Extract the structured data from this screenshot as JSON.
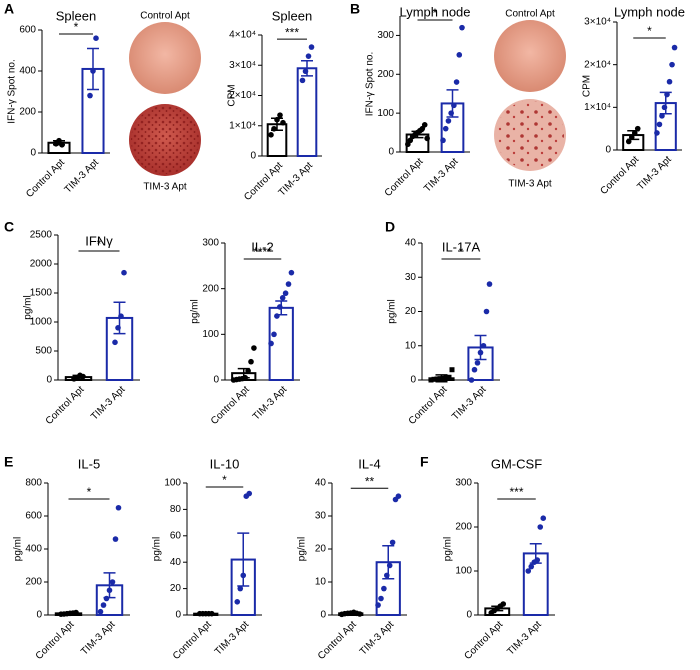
{
  "figure": {
    "panel_labels": [
      "A",
      "B",
      "C",
      "D",
      "E",
      "F"
    ],
    "image_labels": [
      "Control Apt",
      "TIM-3 Apt",
      "Control Apt",
      "TIM-3 Apt"
    ]
  },
  "chart_data": [
    {
      "type": "bar",
      "title": "Spleen",
      "ylabel": "IFN-γ Spot no.",
      "categories": [
        "Control Apt",
        "TIM-3 Apt"
      ],
      "values": [
        50,
        410
      ],
      "errors": [
        10,
        100
      ],
      "points": [
        [
          45,
          60,
          40
        ],
        [
          280,
          400,
          560
        ]
      ],
      "significance": "*",
      "colors": [
        "#000000",
        "#1a2aa8"
      ],
      "ylim": [
        0,
        600
      ],
      "yticks": [
        0,
        200,
        400,
        600
      ]
    },
    {
      "type": "bar",
      "title": "Spleen",
      "ylabel": "CPM",
      "categories": [
        "Control Apt",
        "TIM-3 Apt"
      ],
      "values": [
        10500,
        29000
      ],
      "errors": [
        2000,
        2500
      ],
      "points": [
        [
          7000,
          9000,
          12000,
          13500,
          11000
        ],
        [
          25000,
          28000,
          33000,
          36000
        ]
      ],
      "significance": "***",
      "colors": [
        "#000000",
        "#1a2aa8"
      ],
      "ylim": [
        0,
        40000
      ],
      "yticks": [
        0,
        {
          "value": 10000,
          "label": "1×10⁴"
        },
        {
          "value": 20000,
          "label": "2×10⁴"
        },
        {
          "value": 30000,
          "label": "3×10⁴"
        },
        {
          "value": 40000,
          "label": "4×10⁴"
        }
      ]
    },
    {
      "type": "bar",
      "title": "Lymph node",
      "ylabel": "IFN-γ Spot no.",
      "categories": [
        "Control Apt",
        "TIM-3 Apt"
      ],
      "values": [
        45,
        125
      ],
      "errors": [
        8,
        35
      ],
      "points": [
        [
          20,
          30,
          40,
          45,
          50,
          55,
          60,
          70,
          35
        ],
        [
          30,
          60,
          80,
          100,
          120,
          180,
          250,
          320
        ]
      ],
      "significance": "*",
      "colors": [
        "#000000",
        "#1a2aa8"
      ],
      "ylim": [
        0,
        350
      ],
      "yticks": [
        0,
        100,
        200,
        300
      ]
    },
    {
      "type": "bar",
      "title": "Lymph node",
      "ylabel": "CPM",
      "categories": [
        "Control Apt",
        "TIM-3 Apt"
      ],
      "values": [
        3500,
        11000
      ],
      "errors": [
        1000,
        2500
      ],
      "points": [
        [
          2000,
          3000,
          4000,
          5000
        ],
        [
          4000,
          6000,
          8000,
          10000,
          13000,
          16000,
          20000,
          24000
        ]
      ],
      "significance": "*",
      "colors": [
        "#000000",
        "#1a2aa8"
      ],
      "ylim": [
        0,
        30000
      ],
      "yticks": [
        0,
        {
          "value": 10000,
          "label": "1×10⁴"
        },
        {
          "value": 20000,
          "label": "2×10⁴"
        },
        {
          "value": 30000,
          "label": "3×10⁴"
        }
      ]
    },
    {
      "type": "bar",
      "title": "IFNγ",
      "ylabel": "pg/ml",
      "categories": [
        "Control Apt",
        "TIM-3 Apt"
      ],
      "values": [
        50,
        1070
      ],
      "errors": [
        30,
        270
      ],
      "points": [
        [
          20,
          40,
          80,
          60
        ],
        [
          650,
          900,
          1100,
          1850
        ]
      ],
      "significance": "*",
      "colors": [
        "#000000",
        "#1a2aa8"
      ],
      "ylim": [
        0,
        2500
      ],
      "yticks": [
        0,
        500,
        1000,
        1500,
        2000,
        2500
      ]
    },
    {
      "type": "bar",
      "title": "IL-2",
      "ylabel": "pg/ml",
      "categories": [
        "Control Apt",
        "TIM-3 Apt"
      ],
      "values": [
        15,
        158
      ],
      "errors": [
        10,
        15
      ],
      "points": [
        [
          0,
          1,
          2,
          3,
          5,
          20,
          40,
          70
        ],
        [
          80,
          100,
          140,
          160,
          180,
          190,
          210,
          235
        ]
      ],
      "significance": "****",
      "colors": [
        "#000000",
        "#1a2aa8"
      ],
      "ylim": [
        0,
        300
      ],
      "yticks": [
        0,
        100,
        200,
        300
      ]
    },
    {
      "type": "bar",
      "title": "IL-17A",
      "ylabel": "pg/ml",
      "categories": [
        "Control Apt",
        "TIM-3 Apt"
      ],
      "values": [
        0.5,
        9.5
      ],
      "errors": [
        1,
        3.5
      ],
      "points": [
        [
          0,
          0.2,
          0.3,
          0.4,
          0.5,
          0.6,
          0.8,
          3
        ],
        [
          0,
          3,
          5,
          8,
          10,
          20,
          28
        ]
      ],
      "markers": [
        "square",
        "circle"
      ],
      "significance": "*",
      "colors": [
        "#000000",
        "#1a2aa8"
      ],
      "ylim": [
        0,
        40
      ],
      "yticks": [
        0,
        10,
        20,
        30,
        40
      ]
    },
    {
      "type": "bar",
      "title": "IL-5",
      "ylabel": "pg/ml",
      "categories": [
        "Control Apt",
        "TIM-3 Apt"
      ],
      "values": [
        10,
        180
      ],
      "errors": [
        3,
        75
      ],
      "points": [
        [
          5,
          6,
          8,
          10,
          12,
          15
        ],
        [
          20,
          60,
          100,
          150,
          200,
          460,
          650
        ]
      ],
      "significance": "*",
      "colors": [
        "#000000",
        "#1a2aa8"
      ],
      "ylim": [
        0,
        800
      ],
      "yticks": [
        0,
        200,
        400,
        600,
        800
      ]
    },
    {
      "type": "bar",
      "title": "IL-10",
      "ylabel": "pg/ml",
      "categories": [
        "Control Apt",
        "TIM-3 Apt"
      ],
      "values": [
        1,
        42
      ],
      "errors": [
        0.3,
        20
      ],
      "points": [
        [
          1,
          1,
          1,
          1,
          1
        ],
        [
          10,
          20,
          30,
          90,
          92
        ]
      ],
      "significance": "*",
      "colors": [
        "#000000",
        "#1a2aa8"
      ],
      "ylim": [
        0,
        100
      ],
      "yticks": [
        0,
        20,
        40,
        60,
        80,
        100
      ]
    },
    {
      "type": "bar",
      "title": "IL-4",
      "ylabel": "pg/ml",
      "categories": [
        "Control Apt",
        "TIM-3 Apt"
      ],
      "values": [
        0.5,
        16
      ],
      "errors": [
        0.2,
        5
      ],
      "points": [
        [
          0.2,
          0.4,
          0.5,
          0.6,
          0.8,
          0.5,
          0.3
        ],
        [
          3,
          5,
          8,
          12,
          15,
          22,
          35,
          36
        ]
      ],
      "significance": "**",
      "colors": [
        "#000000",
        "#1a2aa8"
      ],
      "ylim": [
        0,
        40
      ],
      "yticks": [
        0,
        10,
        20,
        30,
        40
      ]
    },
    {
      "type": "bar",
      "title": "GM-CSF",
      "ylabel": "pg/ml",
      "categories": [
        "Control Apt",
        "TIM-3 Apt"
      ],
      "values": [
        15,
        140
      ],
      "errors": [
        5,
        22
      ],
      "points": [
        [
          5,
          10,
          15,
          20,
          25
        ],
        [
          100,
          110,
          120,
          125,
          200,
          220
        ]
      ],
      "significance": "***",
      "colors": [
        "#000000",
        "#1a2aa8"
      ],
      "ylim": [
        0,
        300
      ],
      "yticks": [
        0,
        100,
        200,
        300
      ]
    }
  ]
}
